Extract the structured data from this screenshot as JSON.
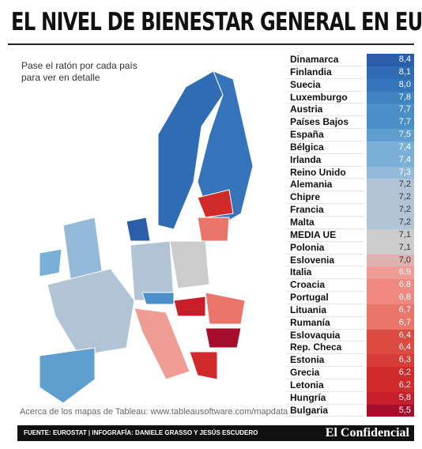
{
  "header": {
    "title": "EL NIVEL DE BIENESTAR GENERAL EN EUROPA"
  },
  "note": "Pase el ratón por cada país para ver en detalle",
  "attribution": "Acerca de los mapas de Tableau: www.tableausoftware.com/mapdata",
  "ranking": [
    {
      "country": "Dinamarca",
      "value": "8,4",
      "color": "#2a5ea8"
    },
    {
      "country": "Finlandia",
      "value": "8,1",
      "color": "#2f6cb4"
    },
    {
      "country": "Suecia",
      "value": "8,0",
      "color": "#3574bb"
    },
    {
      "country": "Luxemburgo",
      "value": "7,8",
      "color": "#3e84c2"
    },
    {
      "country": "Austria",
      "value": "7,7",
      "color": "#4a8fc7"
    },
    {
      "country": "Países Bajos",
      "value": "7,7",
      "color": "#4a8fc7"
    },
    {
      "country": "España",
      "value": "7,5",
      "color": "#5e9fd0"
    },
    {
      "country": "Bélgica",
      "value": "7,4",
      "color": "#7ab0d8"
    },
    {
      "country": "Irlanda",
      "value": "7,4",
      "color": "#7ab0d8"
    },
    {
      "country": "Reino Unido",
      "value": "7,3",
      "color": "#93bbd9"
    },
    {
      "country": "Alemania",
      "value": "7,2",
      "color": "#b0c4d6"
    },
    {
      "country": "Chipre",
      "value": "7,2",
      "color": "#b0c4d6"
    },
    {
      "country": "Francia",
      "value": "7,2",
      "color": "#b0c4d6"
    },
    {
      "country": "Malta",
      "value": "7,2",
      "color": "#b0c4d6"
    },
    {
      "country": "MEDIA UE",
      "value": "7,1",
      "color": "#cccccc"
    },
    {
      "country": "Polonia",
      "value": "7,1",
      "color": "#cccccc"
    },
    {
      "country": "Eslovenia",
      "value": "7,0",
      "color": "#e0b0ae"
    },
    {
      "country": "Italia",
      "value": "6,9",
      "color": "#ef9c94"
    },
    {
      "country": "Croacia",
      "value": "6,8",
      "color": "#f08a80"
    },
    {
      "country": "Portugal",
      "value": "6,8",
      "color": "#f08a80"
    },
    {
      "country": "Lituania",
      "value": "6,7",
      "color": "#ea756b"
    },
    {
      "country": "Rumanía",
      "value": "6,7",
      "color": "#ea756b"
    },
    {
      "country": "Eslovaquia",
      "value": "6,4",
      "color": "#dc4a40"
    },
    {
      "country": "Rep. Checa",
      "value": "6,4",
      "color": "#dc4a40"
    },
    {
      "country": "Estonia",
      "value": "6,3",
      "color": "#d83c36"
    },
    {
      "country": "Grecia",
      "value": "6,2",
      "color": "#d12a2a"
    },
    {
      "country": "Letonia",
      "value": "6,2",
      "color": "#d12a2a"
    },
    {
      "country": "Hungría",
      "value": "5,8",
      "color": "#c81e2b"
    },
    {
      "country": "Bulgaria",
      "value": "5,5",
      "color": "#a50f2b"
    }
  ],
  "footer": {
    "source": "FUENTE: EUROSTAT | INFOGRAFÍA: DANIELE GRASSO Y JESÚS ESCUDERO",
    "brand": "El Confidencial"
  }
}
